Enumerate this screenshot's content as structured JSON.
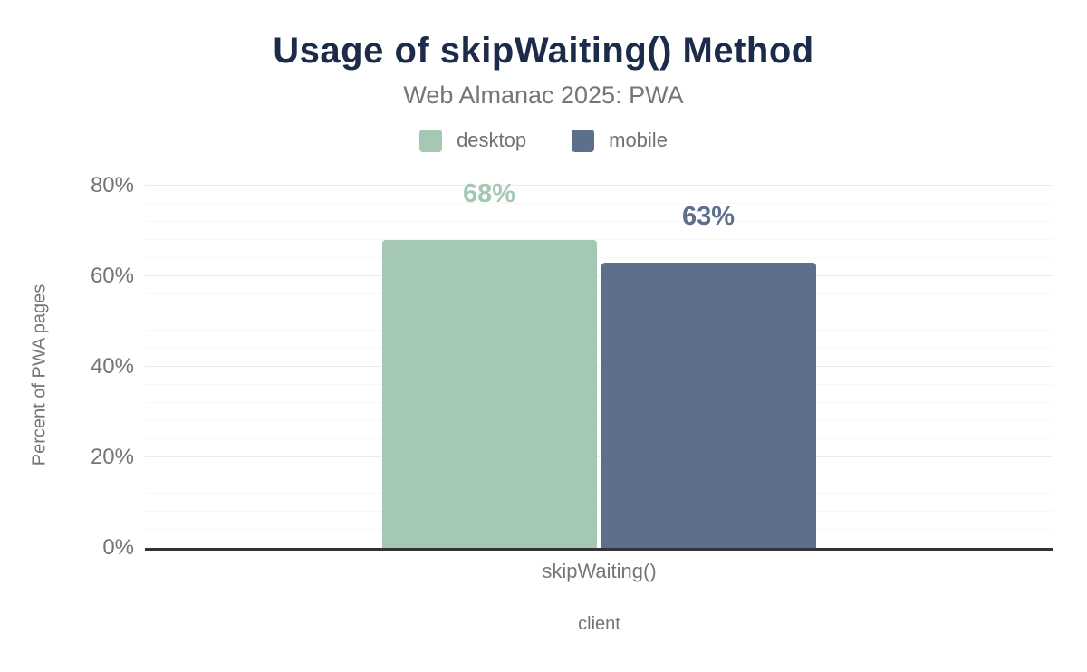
{
  "header": {
    "title": "Usage of skipWaiting() Method",
    "subtitle": "Web Almanac 2025: PWA"
  },
  "colors": {
    "background": "#ffffff",
    "title_text": "#1b2b49",
    "subtitle_text": "#757575",
    "axis_text": "#71767a",
    "axis_line": "#333333",
    "grid_major": "#ebebeb",
    "grid_minor": "#f7f7f7",
    "desktop_series": "#a5c8b5",
    "mobile_series": "#5d6f8d"
  },
  "chart_data": {
    "type": "bar",
    "title": "Usage of skipWaiting() Method",
    "subtitle": "Web Almanac 2025: PWA",
    "categories": [
      "skipWaiting()"
    ],
    "series": [
      {
        "name": "desktop",
        "values": [
          68
        ],
        "labels": [
          "68%"
        ],
        "color": "#a5c8b5"
      },
      {
        "name": "mobile",
        "values": [
          63
        ],
        "labels": [
          "63%"
        ],
        "color": "#5d6f8d"
      }
    ],
    "xlabel": "client",
    "ylabel": "Percent of PWA pages",
    "ylim": [
      0,
      80
    ],
    "yticks": [
      0,
      20,
      40,
      60,
      80
    ],
    "ytick_labels": [
      "0%",
      "20%",
      "40%",
      "60%",
      "80%"
    ],
    "grid": "horizontal minor every 4%, major every 20%",
    "legend_position": "top-center"
  }
}
